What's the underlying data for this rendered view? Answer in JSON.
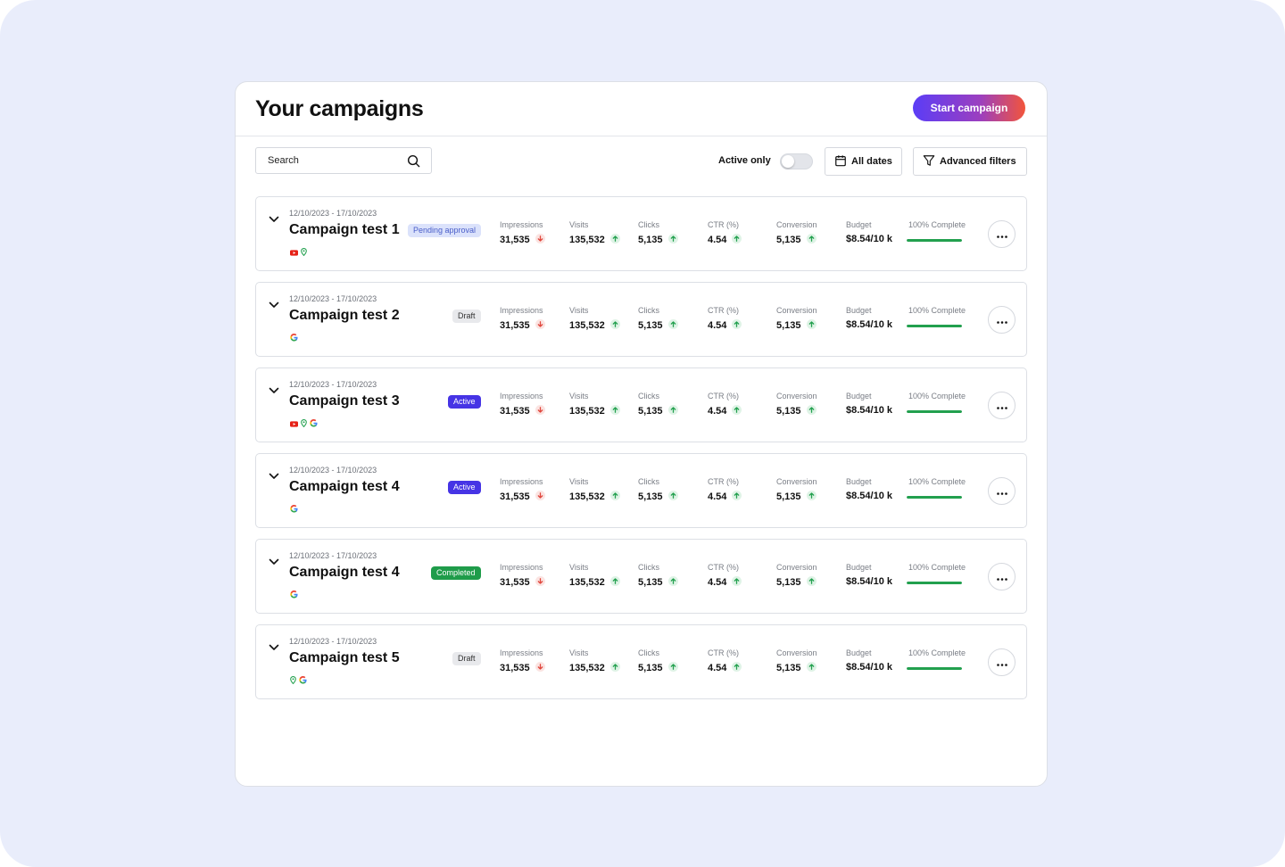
{
  "header": {
    "title": "Your campaigns",
    "start_button": "Start campaign"
  },
  "toolbar": {
    "search_placeholder": "Search",
    "active_only_label": "Active only",
    "active_only_on": false,
    "all_dates_label": "All dates",
    "advanced_filters_label": "Advanced filters"
  },
  "labels": {
    "impressions": "Impressions",
    "visits": "Visits",
    "clicks": "Clicks",
    "ctr": "CTR (%)",
    "conversion": "Conversion",
    "budget": "Budget",
    "complete": "100% Complete"
  },
  "colors": {
    "accent": "#4634e5",
    "up": "#22a04e",
    "down": "#e0463c",
    "pending_bg": "#dbe2fb",
    "completed": "#1f9c4a"
  },
  "campaigns": [
    {
      "dates": "12/10/2023 - 17/10/2023",
      "name": "Campaign test 1",
      "status": "Pending approval",
      "status_type": "pending",
      "platforms": [
        "youtube-icon",
        "maps-pin-icon"
      ],
      "impressions": "31,535",
      "impressions_trend": "down",
      "visits": "135,532",
      "visits_trend": "up",
      "clicks": "5,135",
      "clicks_trend": "up",
      "ctr": "4.54",
      "ctr_trend": "up",
      "conversion": "5,135",
      "conversion_trend": "up",
      "budget": "$8.54/10 k",
      "progress": 1.0
    },
    {
      "dates": "12/10/2023 - 17/10/2023",
      "name": "Campaign test 2",
      "status": "Draft",
      "status_type": "draft",
      "platforms": [
        "google-icon"
      ],
      "impressions": "31,535",
      "impressions_trend": "down",
      "visits": "135,532",
      "visits_trend": "up",
      "clicks": "5,135",
      "clicks_trend": "up",
      "ctr": "4.54",
      "ctr_trend": "up",
      "conversion": "5,135",
      "conversion_trend": "up",
      "budget": "$8.54/10 k",
      "progress": 1.0
    },
    {
      "dates": "12/10/2023 - 17/10/2023",
      "name": "Campaign test 3",
      "status": "Active",
      "status_type": "active",
      "platforms": [
        "youtube-icon",
        "maps-pin-icon",
        "google-icon"
      ],
      "impressions": "31,535",
      "impressions_trend": "down",
      "visits": "135,532",
      "visits_trend": "up",
      "clicks": "5,135",
      "clicks_trend": "up",
      "ctr": "4.54",
      "ctr_trend": "up",
      "conversion": "5,135",
      "conversion_trend": "up",
      "budget": "$8.54/10 k",
      "progress": 1.0
    },
    {
      "dates": "12/10/2023 - 17/10/2023",
      "name": "Campaign test 4",
      "status": "Active",
      "status_type": "active",
      "platforms": [
        "google-icon"
      ],
      "impressions": "31,535",
      "impressions_trend": "down",
      "visits": "135,532",
      "visits_trend": "up",
      "clicks": "5,135",
      "clicks_trend": "up",
      "ctr": "4.54",
      "ctr_trend": "up",
      "conversion": "5,135",
      "conversion_trend": "up",
      "budget": "$8.54/10 k",
      "progress": 1.0
    },
    {
      "dates": "12/10/2023 - 17/10/2023",
      "name": "Campaign test 4",
      "status": "Completed",
      "status_type": "completed",
      "platforms": [
        "google-icon"
      ],
      "impressions": "31,535",
      "impressions_trend": "down",
      "visits": "135,532",
      "visits_trend": "up",
      "clicks": "5,135",
      "clicks_trend": "up",
      "ctr": "4.54",
      "ctr_trend": "up",
      "conversion": "5,135",
      "conversion_trend": "up",
      "budget": "$8.54/10 k",
      "progress": 1.0
    },
    {
      "dates": "12/10/2023 - 17/10/2023",
      "name": "Campaign test 5",
      "status": "Draft",
      "status_type": "draft",
      "platforms": [
        "maps-pin-icon",
        "google-icon"
      ],
      "impressions": "31,535",
      "impressions_trend": "down",
      "visits": "135,532",
      "visits_trend": "up",
      "clicks": "5,135",
      "clicks_trend": "up",
      "ctr": "4.54",
      "ctr_trend": "up",
      "conversion": "5,135",
      "conversion_trend": "up",
      "budget": "$8.54/10 k",
      "progress": 1.0
    }
  ]
}
